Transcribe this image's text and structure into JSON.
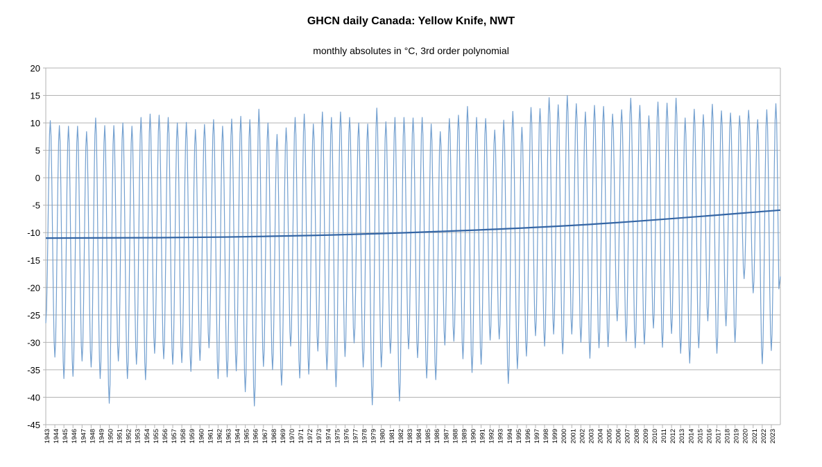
{
  "chart_data": {
    "type": "line",
    "title": "GHCN daily Canada: Yellow Knife, NWT",
    "subtitle": "monthly absolutes in °C, 3rd order polynomial",
    "xlabel": "",
    "ylabel": "",
    "ylim": [
      -45,
      20
    ],
    "yticks": [
      20,
      15,
      10,
      5,
      0,
      -5,
      -10,
      -15,
      -20,
      -25,
      -30,
      -35,
      -40,
      -45
    ],
    "x_start_year": 1943,
    "x_end_year": 2023,
    "grid": "horizontal",
    "legend": "none",
    "colors": {
      "monthly": "#729fcf",
      "trend": "#3465a4",
      "grid": "#b3b3b3",
      "axis": "#b3b3b3"
    },
    "series": [
      {
        "series_role": "monthly",
        "annual_extremes": [
          {
            "year": 1943,
            "max": 10.4,
            "min": -26.5
          },
          {
            "year": 1944,
            "max": 9.5,
            "min": -32.7
          },
          {
            "year": 1945,
            "max": 9.4,
            "min": -36.6
          },
          {
            "year": 1946,
            "max": 9.4,
            "min": -36.2
          },
          {
            "year": 1947,
            "max": 8.4,
            "min": -33.4
          },
          {
            "year": 1948,
            "max": 10.9,
            "min": -34.5
          },
          {
            "year": 1949,
            "max": 9.5,
            "min": -36.6
          },
          {
            "year": 1950,
            "max": 9.5,
            "min": -41.1
          },
          {
            "year": 1951,
            "max": 10.0,
            "min": -33.4
          },
          {
            "year": 1952,
            "max": 9.4,
            "min": -36.6
          },
          {
            "year": 1953,
            "max": 11.0,
            "min": -34.0
          },
          {
            "year": 1954,
            "max": 11.6,
            "min": -36.8
          },
          {
            "year": 1955,
            "max": 11.4,
            "min": -32.0
          },
          {
            "year": 1956,
            "max": 11.0,
            "min": -33.0
          },
          {
            "year": 1957,
            "max": 10.0,
            "min": -34.0
          },
          {
            "year": 1958,
            "max": 10.1,
            "min": -33.7
          },
          {
            "year": 1959,
            "max": 8.8,
            "min": -35.3
          },
          {
            "year": 1960,
            "max": 9.7,
            "min": -33.3
          },
          {
            "year": 1961,
            "max": 10.6,
            "min": -31.0
          },
          {
            "year": 1962,
            "max": 9.4,
            "min": -36.6
          },
          {
            "year": 1963,
            "max": 10.7,
            "min": -36.3
          },
          {
            "year": 1964,
            "max": 11.2,
            "min": -35.2
          },
          {
            "year": 1965,
            "max": 10.6,
            "min": -39.0
          },
          {
            "year": 1966,
            "max": 12.5,
            "min": -41.6
          },
          {
            "year": 1967,
            "max": 10.0,
            "min": -34.4
          },
          {
            "year": 1968,
            "max": 7.9,
            "min": -35.0
          },
          {
            "year": 1969,
            "max": 9.1,
            "min": -37.8
          },
          {
            "year": 1970,
            "max": 11.0,
            "min": -30.7
          },
          {
            "year": 1971,
            "max": 11.6,
            "min": -36.5
          },
          {
            "year": 1972,
            "max": 9.8,
            "min": -35.8
          },
          {
            "year": 1973,
            "max": 12.0,
            "min": -31.6
          },
          {
            "year": 1974,
            "max": 11.0,
            "min": -35.0
          },
          {
            "year": 1975,
            "max": 12.0,
            "min": -38.1
          },
          {
            "year": 1976,
            "max": 11.0,
            "min": -32.6
          },
          {
            "year": 1977,
            "max": 10.0,
            "min": -30.1
          },
          {
            "year": 1978,
            "max": 9.8,
            "min": -34.5
          },
          {
            "year": 1979,
            "max": 12.7,
            "min": -41.4
          },
          {
            "year": 1980,
            "max": 10.2,
            "min": -34.5
          },
          {
            "year": 1981,
            "max": 11.0,
            "min": -32.0
          },
          {
            "year": 1982,
            "max": 11.0,
            "min": -40.7
          },
          {
            "year": 1983,
            "max": 10.9,
            "min": -31.2
          },
          {
            "year": 1984,
            "max": 11.0,
            "min": -32.8
          },
          {
            "year": 1985,
            "max": 9.8,
            "min": -36.5
          },
          {
            "year": 1986,
            "max": 8.4,
            "min": -36.8
          },
          {
            "year": 1987,
            "max": 10.8,
            "min": -30.5
          },
          {
            "year": 1988,
            "max": 11.4,
            "min": -29.8
          },
          {
            "year": 1989,
            "max": 13.0,
            "min": -33.0
          },
          {
            "year": 1990,
            "max": 11.0,
            "min": -35.5
          },
          {
            "year": 1991,
            "max": 10.8,
            "min": -34.0
          },
          {
            "year": 1992,
            "max": 8.7,
            "min": -29.6
          },
          {
            "year": 1993,
            "max": 10.5,
            "min": -29.4
          },
          {
            "year": 1994,
            "max": 12.1,
            "min": -37.5
          },
          {
            "year": 1995,
            "max": 9.2,
            "min": -34.8
          },
          {
            "year": 1996,
            "max": 12.8,
            "min": -32.5
          },
          {
            "year": 1997,
            "max": 12.6,
            "min": -28.8
          },
          {
            "year": 1998,
            "max": 14.6,
            "min": -30.7
          },
          {
            "year": 1999,
            "max": 13.3,
            "min": -28.5
          },
          {
            "year": 2000,
            "max": 15.0,
            "min": -32.1
          },
          {
            "year": 2001,
            "max": 13.5,
            "min": -28.5
          },
          {
            "year": 2002,
            "max": 12.0,
            "min": -30.0
          },
          {
            "year": 2003,
            "max": 13.2,
            "min": -32.9
          },
          {
            "year": 2004,
            "max": 13.0,
            "min": -31.0
          },
          {
            "year": 2005,
            "max": 11.6,
            "min": -30.8
          },
          {
            "year": 2006,
            "max": 12.4,
            "min": -26.1
          },
          {
            "year": 2007,
            "max": 14.5,
            "min": -29.8
          },
          {
            "year": 2008,
            "max": 13.2,
            "min": -31.0
          },
          {
            "year": 2009,
            "max": 11.3,
            "min": -30.3
          },
          {
            "year": 2010,
            "max": 13.8,
            "min": -27.4
          },
          {
            "year": 2011,
            "max": 13.6,
            "min": -30.9
          },
          {
            "year": 2012,
            "max": 14.5,
            "min": -28.4
          },
          {
            "year": 2013,
            "max": 10.9,
            "min": -32.0
          },
          {
            "year": 2014,
            "max": 12.5,
            "min": -33.8
          },
          {
            "year": 2015,
            "max": 11.5,
            "min": -31.0
          },
          {
            "year": 2016,
            "max": 13.4,
            "min": -26.1
          },
          {
            "year": 2017,
            "max": 12.2,
            "min": -32.0
          },
          {
            "year": 2018,
            "max": 11.8,
            "min": -27.0
          },
          {
            "year": 2019,
            "max": 11.3,
            "min": -30.0
          },
          {
            "year": 2020,
            "max": 12.3,
            "min": -18.4
          },
          {
            "year": 2021,
            "max": 10.6,
            "min": -21.0
          },
          {
            "year": 2022,
            "max": 12.4,
            "min": -33.9
          },
          {
            "year": 2023,
            "max": 13.5,
            "min": -31.5
          }
        ],
        "last_value": -18.0
      },
      {
        "series_role": "trend",
        "type": "polynomial-3",
        "points": [
          {
            "year": 1943,
            "value": -11.0
          },
          {
            "year": 1963,
            "value": -10.8
          },
          {
            "year": 1983,
            "value": -10.0
          },
          {
            "year": 2003,
            "value": -8.5
          },
          {
            "year": 2023,
            "value": -5.9
          }
        ]
      }
    ]
  }
}
